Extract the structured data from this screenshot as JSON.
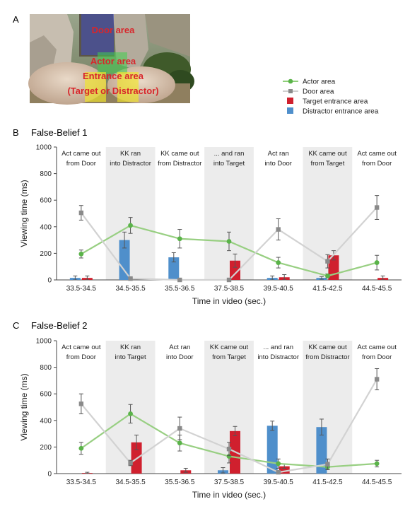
{
  "panel_a": {
    "label": "A",
    "area_labels": [
      "Door area",
      "Actor area",
      "Entrance area",
      "(Target or Distractor)"
    ]
  },
  "legend": [
    {
      "name": "Actor area",
      "kind": "line-circle",
      "color": "#5ab349"
    },
    {
      "name": "Door area",
      "kind": "line-square",
      "color": "#8a8a8a"
    },
    {
      "name": "Target entrance area",
      "kind": "bar",
      "color": "#d0202e"
    },
    {
      "name": "Distractor entrance area",
      "kind": "bar",
      "color": "#4f8fcb"
    }
  ],
  "chart_data": [
    {
      "type": "bar+line",
      "panel": "B",
      "title": "False-Belief 1",
      "xlabel": "Time in video (sec.)",
      "ylabel": "Viewing time (ms)",
      "ylim": [
        0,
        1000
      ],
      "yticks": [
        0,
        200,
        400,
        600,
        800,
        1000
      ],
      "categories": [
        "33.5-34.5",
        "34.5-35.5",
        "35.5-36.5",
        "37.5-38.5",
        "39.5-40.5",
        "41.5-42.5",
        "44.5-45.5"
      ],
      "shaded": [
        false,
        true,
        false,
        true,
        false,
        true,
        false
      ],
      "annotations": [
        [
          "Act came out",
          "from Door"
        ],
        [
          "KK ran",
          "into Distractor"
        ],
        [
          "KK came out",
          "from Distractor"
        ],
        [
          "... and ran",
          "into Target"
        ],
        [
          "Act ran",
          "into Door"
        ],
        [
          "KK came out",
          "from Target"
        ],
        [
          "Act came out",
          "from Door"
        ]
      ],
      "series": [
        {
          "name": "Actor area",
          "type": "line",
          "values": [
            195,
            410,
            310,
            290,
            130,
            30,
            130
          ],
          "errors": [
            30,
            60,
            70,
            70,
            40,
            15,
            55
          ]
        },
        {
          "name": "Door area",
          "type": "line",
          "values": [
            505,
            10,
            0,
            0,
            380,
            140,
            545
          ],
          "errors": [
            55,
            5,
            3,
            3,
            80,
            50,
            90
          ]
        },
        {
          "name": "Distractor entrance area",
          "type": "bar",
          "values": [
            15,
            300,
            170,
            0,
            15,
            15,
            0
          ],
          "errors": [
            15,
            60,
            35,
            0,
            15,
            10,
            0
          ]
        },
        {
          "name": "Target entrance area",
          "type": "bar",
          "values": [
            15,
            0,
            0,
            145,
            20,
            185,
            15
          ],
          "errors": [
            15,
            0,
            0,
            50,
            20,
            35,
            15
          ]
        }
      ]
    },
    {
      "type": "bar+line",
      "panel": "C",
      "title": "False-Belief 2",
      "xlabel": "Time in video (sec.)",
      "ylabel": "Viewing time (ms)",
      "ylim": [
        0,
        1000
      ],
      "yticks": [
        0,
        200,
        400,
        600,
        800,
        1000
      ],
      "categories": [
        "33.5-34.5",
        "34.5-35.5",
        "35.5-36.5",
        "37.5-38.5",
        "39.5-40.5",
        "41.5-42.5",
        "44.5-45.5"
      ],
      "shaded": [
        false,
        true,
        false,
        true,
        false,
        true,
        false
      ],
      "annotations": [
        [
          "Act came out",
          "from Door"
        ],
        [
          "KK ran",
          "into Target"
        ],
        [
          "Act ran",
          "into Door"
        ],
        [
          "KK came out",
          "from Target"
        ],
        [
          "... and ran",
          "into Distractor"
        ],
        [
          "KK came out",
          "from Distractor"
        ],
        [
          "Act came out",
          "from Door"
        ]
      ],
      "series": [
        {
          "name": "Actor area",
          "type": "line",
          "values": [
            190,
            450,
            230,
            130,
            75,
            50,
            75
          ],
          "errors": [
            45,
            70,
            60,
            50,
            35,
            20,
            25
          ]
        },
        {
          "name": "Door area",
          "type": "line",
          "values": [
            525,
            80,
            340,
            185,
            10,
            70,
            710
          ],
          "errors": [
            75,
            20,
            85,
            50,
            5,
            40,
            80
          ]
        },
        {
          "name": "Distractor entrance area",
          "type": "bar",
          "values": [
            0,
            0,
            0,
            25,
            360,
            350,
            0
          ],
          "errors": [
            0,
            0,
            0,
            20,
            35,
            60,
            0
          ]
        },
        {
          "name": "Target entrance area",
          "type": "bar",
          "values": [
            5,
            235,
            25,
            320,
            55,
            0,
            0
          ],
          "errors": [
            5,
            55,
            15,
            35,
            15,
            0,
            0
          ]
        }
      ]
    }
  ]
}
